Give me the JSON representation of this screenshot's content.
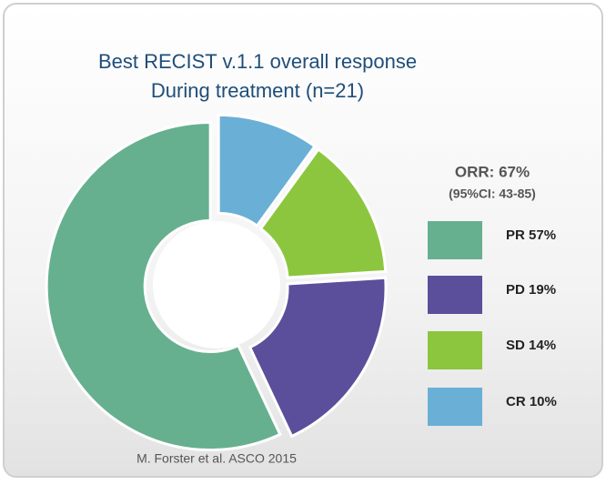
{
  "chart_data": {
    "type": "donut",
    "title": "Best RECIST v.1.1 overall response",
    "subtitle": "During treatment (n=21)",
    "categories": [
      "PR",
      "PD",
      "SD",
      "CR"
    ],
    "values": [
      57,
      19,
      14,
      10
    ],
    "value_labels": [
      "57%",
      "19%",
      "14%",
      "10%"
    ],
    "colors": [
      "#66b08f",
      "#5b4e9a",
      "#8cc63f",
      "#6aafd6"
    ],
    "annotations": [
      "ORR: 67%",
      "(95%CI: 43-85)"
    ],
    "source": "M. Forster et al. ASCO 2015",
    "legend": "right"
  }
}
